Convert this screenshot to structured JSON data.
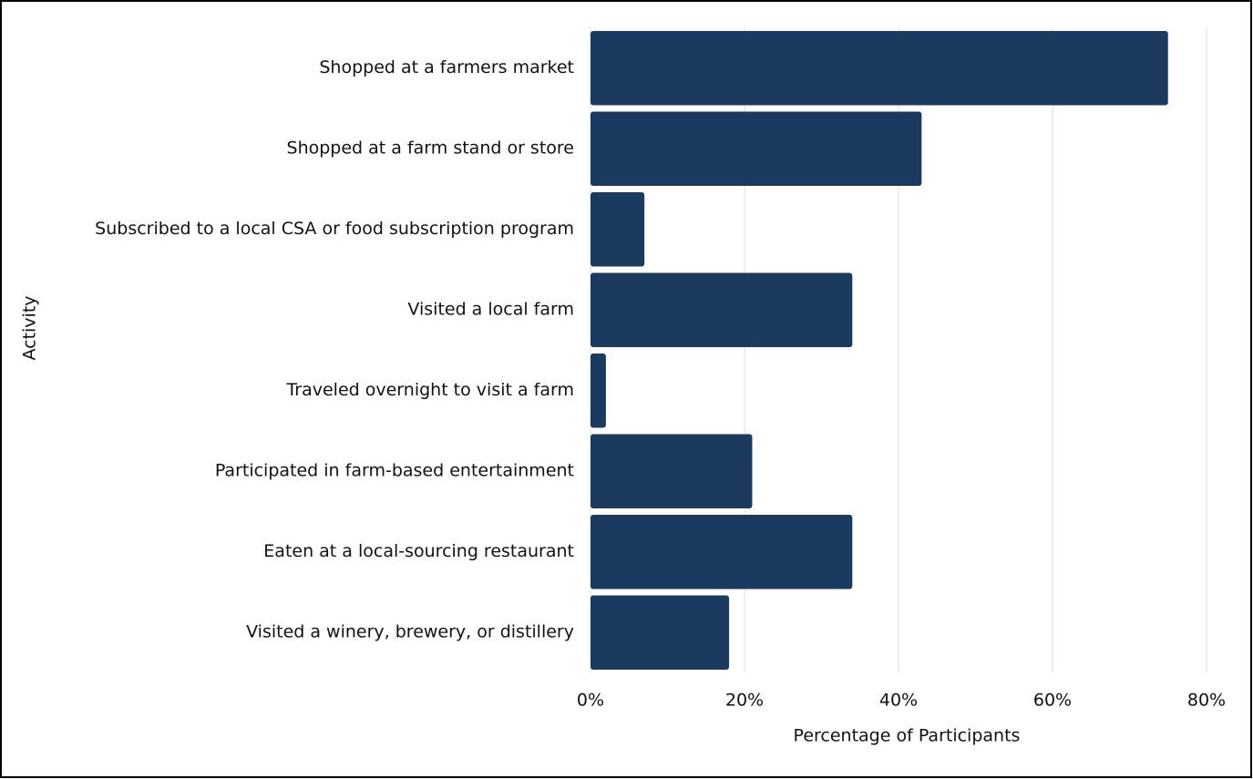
{
  "chart_data": {
    "type": "bar",
    "orientation": "horizontal",
    "categories": [
      "Shopped at a farmers market",
      "Shopped at a farm stand or store",
      "Subscribed to a local CSA or food subscription program",
      "Visited a local farm",
      "Traveled overnight to visit a farm",
      "Participated in farm-based entertainment",
      "Eaten at a local-sourcing restaurant",
      "Visited a winery, brewery, or distillery"
    ],
    "values": [
      75,
      43,
      7,
      34,
      2,
      21,
      34,
      18
    ],
    "color": "#1b3a5f",
    "xlim": [
      0,
      80
    ],
    "xticks": [
      {
        "value": 0,
        "label": "0%"
      },
      {
        "value": 20,
        "label": "20%"
      },
      {
        "value": 40,
        "label": "40%"
      },
      {
        "value": 60,
        "label": "60%"
      },
      {
        "value": 80,
        "label": "80%"
      }
    ],
    "xlabel": "Percentage of Participants",
    "ylabel": "Activity",
    "grid": true
  }
}
